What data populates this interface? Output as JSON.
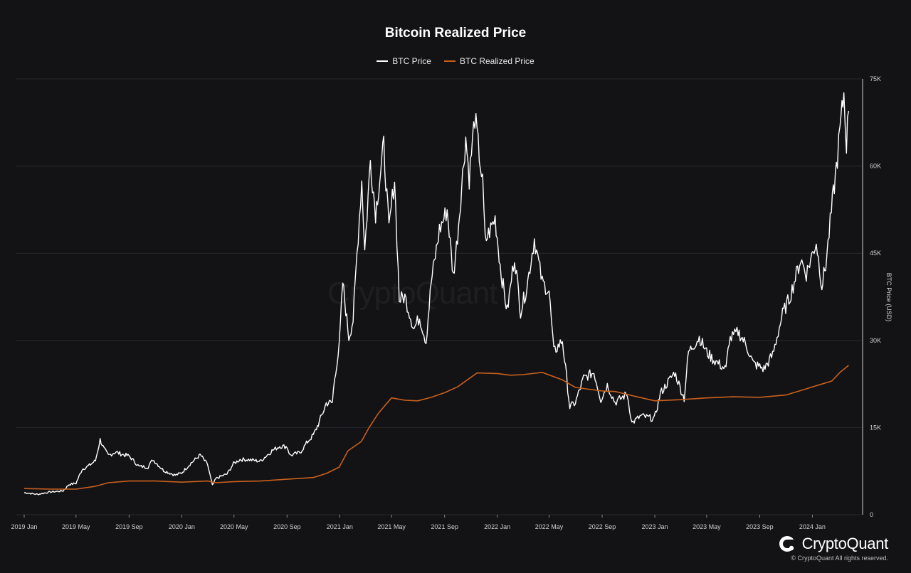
{
  "chart_data": {
    "type": "line",
    "title": "Bitcoin Realized Price",
    "ylabel": "BTC Price (USD)",
    "ylim": [
      0,
      75000
    ],
    "yticks": [
      "0",
      "15K",
      "30K",
      "45K",
      "60K",
      "75K"
    ],
    "ytick_values": [
      0,
      15000,
      30000,
      45000,
      60000,
      75000
    ],
    "xlim": [
      "2019-01-01",
      "2024-03-31"
    ],
    "xticks": [
      "2019 Jan",
      "2019 May",
      "2019 Sep",
      "2020 Jan",
      "2020 May",
      "2020 Sep",
      "2021 Jan",
      "2021 May",
      "2021 Sep",
      "2022 Jan",
      "2022 May",
      "2022 Sep",
      "2023 Jan",
      "2023 May",
      "2023 Sep",
      "2024 Jan"
    ],
    "xtick_dates": [
      "2019-01-01",
      "2019-05-01",
      "2019-09-01",
      "2020-01-01",
      "2020-05-01",
      "2020-09-01",
      "2021-01-01",
      "2021-05-01",
      "2021-09-01",
      "2022-01-01",
      "2022-05-01",
      "2022-09-01",
      "2023-01-01",
      "2023-05-01",
      "2023-09-01",
      "2024-01-01"
    ],
    "grid": true,
    "legend_position": "top-center",
    "series": [
      {
        "name": "BTC Price",
        "color": "#ffffff",
        "points": [
          [
            "2019-01-01",
            3800
          ],
          [
            "2019-02-01",
            3500
          ],
          [
            "2019-03-01",
            3900
          ],
          [
            "2019-04-01",
            4100
          ],
          [
            "2019-04-15",
            5200
          ],
          [
            "2019-05-01",
            5400
          ],
          [
            "2019-05-15",
            7800
          ],
          [
            "2019-06-01",
            8500
          ],
          [
            "2019-06-15",
            9300
          ],
          [
            "2019-06-26",
            12900
          ],
          [
            "2019-07-05",
            11300
          ],
          [
            "2019-07-15",
            10200
          ],
          [
            "2019-08-01",
            10800
          ],
          [
            "2019-08-15",
            10400
          ],
          [
            "2019-09-01",
            10100
          ],
          [
            "2019-09-24",
            8300
          ],
          [
            "2019-10-15",
            8200
          ],
          [
            "2019-10-26",
            9500
          ],
          [
            "2019-11-20",
            7600
          ],
          [
            "2019-12-17",
            6800
          ],
          [
            "2020-01-01",
            7200
          ],
          [
            "2020-01-20",
            8700
          ],
          [
            "2020-02-13",
            10300
          ],
          [
            "2020-03-01",
            8600
          ],
          [
            "2020-03-12",
            5000
          ],
          [
            "2020-03-20",
            6200
          ],
          [
            "2020-04-01",
            6600
          ],
          [
            "2020-04-15",
            7000
          ],
          [
            "2020-04-30",
            8800
          ],
          [
            "2020-05-15",
            9500
          ],
          [
            "2020-06-01",
            9500
          ],
          [
            "2020-07-01",
            9200
          ],
          [
            "2020-07-28",
            11000
          ],
          [
            "2020-08-15",
            11800
          ],
          [
            "2020-09-01",
            11700
          ],
          [
            "2020-09-08",
            10200
          ],
          [
            "2020-10-01",
            10700
          ],
          [
            "2020-10-21",
            12800
          ],
          [
            "2020-11-01",
            13700
          ],
          [
            "2020-11-15",
            16000
          ],
          [
            "2020-12-01",
            19200
          ],
          [
            "2020-12-15",
            19300
          ],
          [
            "2020-12-20",
            23500
          ],
          [
            "2020-12-31",
            29000
          ],
          [
            "2021-01-08",
            40000
          ],
          [
            "2021-01-22",
            30500
          ],
          [
            "2021-02-01",
            33500
          ],
          [
            "2021-02-10",
            45000
          ],
          [
            "2021-02-21",
            57500
          ],
          [
            "2021-02-28",
            45500
          ],
          [
            "2021-03-13",
            61000
          ],
          [
            "2021-03-25",
            52000
          ],
          [
            "2021-04-13",
            63500
          ],
          [
            "2021-04-25",
            49000
          ],
          [
            "2021-05-08",
            58000
          ],
          [
            "2021-05-19",
            37000
          ],
          [
            "2021-06-01",
            37500
          ],
          [
            "2021-06-22",
            32000
          ],
          [
            "2021-07-05",
            34000
          ],
          [
            "2021-07-20",
            29800
          ],
          [
            "2021-08-01",
            40000
          ],
          [
            "2021-08-20",
            49000
          ],
          [
            "2021-09-07",
            52500
          ],
          [
            "2021-09-21",
            41000
          ],
          [
            "2021-10-01",
            48000
          ],
          [
            "2021-10-20",
            65000
          ],
          [
            "2021-10-28",
            58000
          ],
          [
            "2021-11-10",
            68500
          ],
          [
            "2021-11-28",
            57000
          ],
          [
            "2021-12-04",
            47000
          ],
          [
            "2021-12-27",
            51000
          ],
          [
            "2022-01-10",
            41500
          ],
          [
            "2022-01-24",
            35000
          ],
          [
            "2022-02-10",
            44500
          ],
          [
            "2022-02-24",
            35000
          ],
          [
            "2022-03-10",
            39000
          ],
          [
            "2022-03-28",
            47500
          ],
          [
            "2022-04-15",
            40000
          ],
          [
            "2022-05-01",
            38500
          ],
          [
            "2022-05-12",
            28000
          ],
          [
            "2022-06-01",
            30000
          ],
          [
            "2022-06-18",
            18500
          ],
          [
            "2022-07-01",
            19300
          ],
          [
            "2022-07-20",
            23500
          ],
          [
            "2022-08-13",
            24500
          ],
          [
            "2022-08-29",
            19800
          ],
          [
            "2022-09-13",
            22300
          ],
          [
            "2022-10-01",
            19300
          ],
          [
            "2022-10-29",
            20800
          ],
          [
            "2022-11-09",
            15800
          ],
          [
            "2022-11-30",
            17000
          ],
          [
            "2022-12-31",
            16500
          ],
          [
            "2023-01-14",
            20900
          ],
          [
            "2023-02-16",
            24500
          ],
          [
            "2023-03-10",
            20000
          ],
          [
            "2023-03-20",
            28000
          ],
          [
            "2023-04-14",
            30500
          ],
          [
            "2023-05-01",
            28000
          ],
          [
            "2023-05-15",
            26800
          ],
          [
            "2023-06-15",
            25000
          ],
          [
            "2023-06-22",
            30000
          ],
          [
            "2023-07-13",
            31500
          ],
          [
            "2023-08-01",
            29200
          ],
          [
            "2023-08-17",
            26000
          ],
          [
            "2023-09-11",
            25100
          ],
          [
            "2023-10-01",
            27500
          ],
          [
            "2023-10-24",
            34500
          ],
          [
            "2023-11-10",
            37500
          ],
          [
            "2023-12-05",
            44000
          ],
          [
            "2023-12-18",
            41500
          ],
          [
            "2024-01-10",
            47000
          ],
          [
            "2024-01-23",
            39500
          ],
          [
            "2024-02-01",
            43000
          ],
          [
            "2024-02-14",
            52000
          ],
          [
            "2024-02-28",
            61500
          ],
          [
            "2024-03-05",
            66000
          ],
          [
            "2024-03-14",
            72500
          ],
          [
            "2024-03-20",
            64000
          ],
          [
            "2024-03-25",
            69500
          ]
        ]
      },
      {
        "name": "BTC Realized Price",
        "color": "#c8601c",
        "points": [
          [
            "2019-01-01",
            4500
          ],
          [
            "2019-03-01",
            4400
          ],
          [
            "2019-05-01",
            4400
          ],
          [
            "2019-06-15",
            4900
          ],
          [
            "2019-07-15",
            5500
          ],
          [
            "2019-09-01",
            5800
          ],
          [
            "2019-11-01",
            5800
          ],
          [
            "2020-01-01",
            5600
          ],
          [
            "2020-03-01",
            5800
          ],
          [
            "2020-03-20",
            5500
          ],
          [
            "2020-05-01",
            5700
          ],
          [
            "2020-07-01",
            5800
          ],
          [
            "2020-09-01",
            6100
          ],
          [
            "2020-11-01",
            6400
          ],
          [
            "2020-12-01",
            7100
          ],
          [
            "2020-12-31",
            8200
          ],
          [
            "2021-01-20",
            11000
          ],
          [
            "2021-02-20",
            12600
          ],
          [
            "2021-03-10",
            15000
          ],
          [
            "2021-04-01",
            17500
          ],
          [
            "2021-05-01",
            20100
          ],
          [
            "2021-06-01",
            19700
          ],
          [
            "2021-07-01",
            19600
          ],
          [
            "2021-08-01",
            20200
          ],
          [
            "2021-09-01",
            21000
          ],
          [
            "2021-10-01",
            22000
          ],
          [
            "2021-11-15",
            24400
          ],
          [
            "2022-01-01",
            24300
          ],
          [
            "2022-02-01",
            24000
          ],
          [
            "2022-03-01",
            24100
          ],
          [
            "2022-04-15",
            24500
          ],
          [
            "2022-06-01",
            23200
          ],
          [
            "2022-07-01",
            21900
          ],
          [
            "2022-08-01",
            21600
          ],
          [
            "2022-09-01",
            21300
          ],
          [
            "2022-10-01",
            21200
          ],
          [
            "2022-11-15",
            20400
          ],
          [
            "2023-01-01",
            19600
          ],
          [
            "2023-03-01",
            19800
          ],
          [
            "2023-05-01",
            20100
          ],
          [
            "2023-07-01",
            20300
          ],
          [
            "2023-09-01",
            20200
          ],
          [
            "2023-11-01",
            20600
          ],
          [
            "2023-12-15",
            21600
          ],
          [
            "2024-01-15",
            22300
          ],
          [
            "2024-02-15",
            23000
          ],
          [
            "2024-03-05",
            24500
          ],
          [
            "2024-03-25",
            25700
          ]
        ]
      }
    ]
  },
  "brand": {
    "name": "CryptoQuant",
    "copyright": "© CryptoQuant All rights reserved.",
    "watermark": "CryptoQuant"
  },
  "colors": {
    "background": "#131315",
    "grid": "#2a2a2d",
    "price_line": "#ffffff",
    "realized_line": "#c8601c"
  }
}
